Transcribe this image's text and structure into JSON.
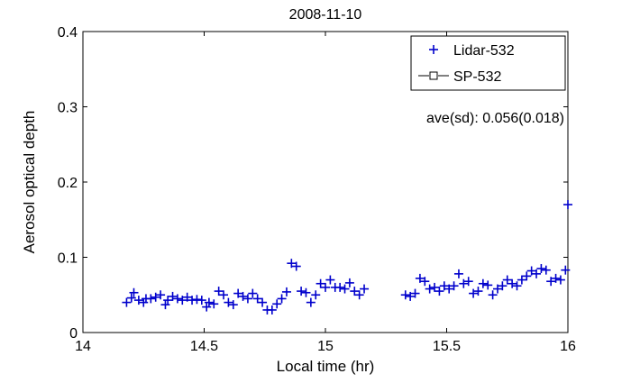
{
  "chart_data": {
    "type": "scatter",
    "title": "2008-11-10",
    "xlabel": "Local time (hr)",
    "ylabel": "Aerosol optical depth",
    "xlim": [
      14,
      16
    ],
    "ylim": [
      0,
      0.4
    ],
    "xticks": [
      "14",
      "14.5",
      "15",
      "15.5",
      "16"
    ],
    "xtick_values": [
      14,
      14.5,
      15,
      15.5,
      16
    ],
    "yticks": [
      "0",
      "0.1",
      "0.2",
      "0.3",
      "0.4"
    ],
    "ytick_values": [
      0,
      0.1,
      0.2,
      0.3,
      0.4
    ],
    "grid": false,
    "legend_position": "top-right",
    "annotation": "ave(sd): 0.056(0.018)",
    "series": [
      {
        "name": "Lidar-532",
        "marker": "+",
        "color": "#0000cc",
        "x": [
          14.18,
          14.2,
          14.21,
          14.23,
          14.25,
          14.26,
          14.28,
          14.3,
          14.32,
          14.34,
          14.35,
          14.37,
          14.39,
          14.41,
          14.43,
          14.45,
          14.47,
          14.49,
          14.51,
          14.52,
          14.54,
          14.56,
          14.58,
          14.6,
          14.62,
          14.64,
          14.66,
          14.68,
          14.7,
          14.72,
          14.74,
          14.76,
          14.78,
          14.8,
          14.82,
          14.84,
          14.86,
          14.88,
          14.9,
          14.92,
          14.94,
          14.96,
          14.98,
          15.0,
          15.02,
          15.04,
          15.06,
          15.08,
          15.1,
          15.12,
          15.14,
          15.16,
          15.33,
          15.35,
          15.37,
          15.39,
          15.41,
          15.43,
          15.45,
          15.47,
          15.49,
          15.51,
          15.53,
          15.55,
          15.57,
          15.59,
          15.61,
          15.63,
          15.65,
          15.67,
          15.69,
          15.71,
          15.73,
          15.75,
          15.77,
          15.79,
          15.81,
          15.83,
          15.85,
          15.87,
          15.89,
          15.91,
          15.93,
          15.95,
          15.97,
          15.99,
          16.0
        ],
        "y": [
          0.04,
          0.046,
          0.053,
          0.043,
          0.04,
          0.045,
          0.045,
          0.047,
          0.05,
          0.037,
          0.043,
          0.048,
          0.045,
          0.043,
          0.047,
          0.043,
          0.044,
          0.043,
          0.034,
          0.04,
          0.038,
          0.055,
          0.05,
          0.04,
          0.037,
          0.052,
          0.048,
          0.045,
          0.052,
          0.045,
          0.04,
          0.03,
          0.03,
          0.038,
          0.045,
          0.054,
          0.092,
          0.088,
          0.055,
          0.053,
          0.04,
          0.05,
          0.065,
          0.06,
          0.07,
          0.06,
          0.06,
          0.058,
          0.066,
          0.055,
          0.05,
          0.058,
          0.05,
          0.048,
          0.052,
          0.072,
          0.068,
          0.058,
          0.06,
          0.055,
          0.062,
          0.058,
          0.062,
          0.078,
          0.065,
          0.068,
          0.052,
          0.055,
          0.065,
          0.063,
          0.05,
          0.058,
          0.062,
          0.07,
          0.065,
          0.062,
          0.07,
          0.075,
          0.082,
          0.078,
          0.085,
          0.083,
          0.068,
          0.072,
          0.07,
          0.083,
          0.17
        ]
      },
      {
        "name": "SP-532",
        "marker": "square-line",
        "color": "#000000",
        "x": [],
        "y": []
      }
    ]
  }
}
